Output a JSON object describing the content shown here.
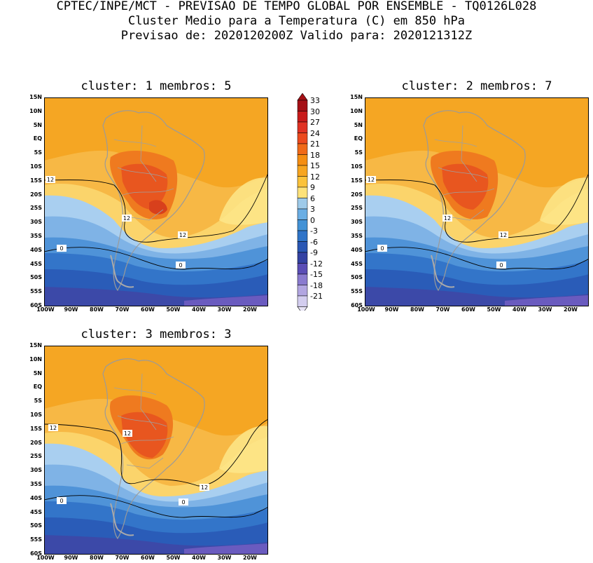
{
  "header": {
    "line1": "CPTEC/INPE/MCT - PREVISAO DE TEMPO GLOBAL POR ENSEMBLE - TQ0126L028",
    "line2": "Cluster Medio para a Temperatura (C) em 850 hPa",
    "line3": "Previsao de: 2020120200Z   Valido para: 2020121312Z"
  },
  "panels": [
    {
      "title": "cluster: 1  membros: 5",
      "contour_labels": [
        "12",
        "12",
        "12",
        "0",
        "0"
      ]
    },
    {
      "title": "cluster: 2  membros: 7",
      "contour_labels": [
        "12",
        "12",
        "12",
        "0",
        "0"
      ]
    },
    {
      "title": "cluster: 3  membros: 3",
      "contour_labels": [
        "12",
        "12",
        "12",
        "0",
        "0"
      ]
    }
  ],
  "lat_labels": [
    "15N",
    "10N",
    "5N",
    "EQ",
    "5S",
    "10S",
    "15S",
    "20S",
    "25S",
    "30S",
    "35S",
    "40S",
    "45S",
    "50S",
    "55S",
    "60S"
  ],
  "lon_labels": [
    "100W",
    "90W",
    "80W",
    "70W",
    "60W",
    "50W",
    "40W",
    "30W",
    "20W"
  ],
  "colorbar": {
    "labels": [
      "33",
      "30",
      "27",
      "24",
      "21",
      "18",
      "15",
      "12",
      "9",
      "6",
      "3",
      "0",
      "-3",
      "-6",
      "-9",
      "-12",
      "-15",
      "-18",
      "-21"
    ],
    "colors": [
      "#a50f15",
      "#c81b1b",
      "#e03224",
      "#ec4a1e",
      "#f06a18",
      "#f58e12",
      "#f7a520",
      "#fbc23a",
      "#fde27a",
      "#9ecae9",
      "#6aaee4",
      "#4292d6",
      "#2f74c8",
      "#2a57b4",
      "#3442a3",
      "#5b4eb6",
      "#8a7bcf",
      "#b2a6e1",
      "#d3cdef"
    ]
  }
}
